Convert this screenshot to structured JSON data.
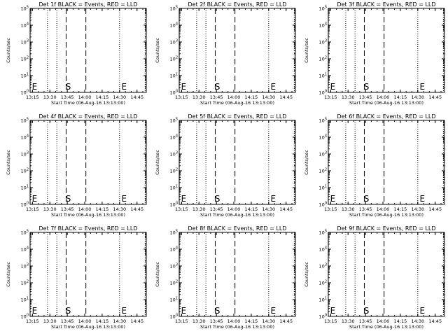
{
  "chart_data": [
    {
      "type": "line",
      "title": "Det 1f BLACK = Events, RED = LLD",
      "xlabel": "Start Time (06-Aug-16 13:13:00)",
      "ylabel": "Counts/sec",
      "xlim": [
        "13:13",
        "14:53"
      ],
      "x_ticks": [
        "13:15",
        "13:30",
        "13:45",
        "14:00",
        "14:15",
        "14:30",
        "14:45"
      ],
      "y_scale": "log",
      "ylim": [
        1,
        100000
      ],
      "y_ticks": [
        "10^0",
        "10^1",
        "10^2",
        "10^3",
        "10^4",
        "10^5"
      ],
      "dotted_vlines": [
        "13:28",
        "13:36",
        "14:30",
        "14:52"
      ],
      "dashed_vlines": [
        "13:44",
        "14:01"
      ],
      "markers": [
        {
          "text": "E",
          "x": "13:14"
        },
        {
          "text": "S",
          "x": "13:43"
        },
        {
          "text": "E",
          "x": "14:31"
        }
      ],
      "series": []
    },
    {
      "type": "line",
      "title": "Det 2f BLACK = Events, RED = LLD",
      "xlabel": "Start Time (06-Aug-16 13:13:00)",
      "ylabel": "Counts/sec",
      "xlim": [
        "13:13",
        "14:53"
      ],
      "x_ticks": [
        "13:15",
        "13:30",
        "13:45",
        "14:00",
        "14:15",
        "14:30",
        "14:45"
      ],
      "y_scale": "log",
      "ylim": [
        1,
        100000
      ],
      "y_ticks": [
        "10^0",
        "10^1",
        "10^2",
        "10^3",
        "10^4",
        "10^5"
      ],
      "dotted_vlines": [
        "13:28",
        "13:36",
        "14:30",
        "14:52"
      ],
      "dashed_vlines": [
        "13:44",
        "14:01"
      ],
      "markers": [
        {
          "text": "E",
          "x": "13:14"
        },
        {
          "text": "S",
          "x": "13:43"
        },
        {
          "text": "E",
          "x": "14:31"
        }
      ],
      "series": []
    },
    {
      "type": "line",
      "title": "Det 3f BLACK = Events, RED = LLD",
      "xlabel": "Start Time (06-Aug-16 13:13:00)",
      "ylabel": "Counts/sec",
      "xlim": [
        "13:13",
        "14:53"
      ],
      "x_ticks": [
        "13:15",
        "13:30",
        "13:45",
        "14:00",
        "14:15",
        "14:30",
        "14:45"
      ],
      "y_scale": "log",
      "ylim": [
        1,
        100000
      ],
      "y_ticks": [
        "10^0",
        "10^1",
        "10^2",
        "10^3",
        "10^4",
        "10^5"
      ],
      "dotted_vlines": [
        "13:28",
        "13:36",
        "14:30",
        "14:52"
      ],
      "dashed_vlines": [
        "13:44",
        "14:01"
      ],
      "markers": [
        {
          "text": "E",
          "x": "13:14"
        },
        {
          "text": "S",
          "x": "13:43"
        },
        {
          "text": "E",
          "x": "14:31"
        }
      ],
      "series": []
    },
    {
      "type": "line",
      "title": "Det 4f BLACK = Events, RED = LLD",
      "xlabel": "Start Time (06-Aug-16 13:13:00)",
      "ylabel": "Counts/sec",
      "xlim": [
        "13:13",
        "14:53"
      ],
      "x_ticks": [
        "13:15",
        "13:30",
        "13:45",
        "14:00",
        "14:15",
        "14:30",
        "14:45"
      ],
      "y_scale": "log",
      "ylim": [
        1,
        100000
      ],
      "y_ticks": [
        "10^0",
        "10^1",
        "10^2",
        "10^3",
        "10^4",
        "10^5"
      ],
      "dotted_vlines": [
        "13:28",
        "13:36",
        "14:30",
        "14:52"
      ],
      "dashed_vlines": [
        "13:44",
        "14:01"
      ],
      "markers": [
        {
          "text": "E",
          "x": "13:14"
        },
        {
          "text": "S",
          "x": "13:43"
        },
        {
          "text": "E",
          "x": "14:31"
        }
      ],
      "series": []
    },
    {
      "type": "line",
      "title": "Det 5f BLACK = Events, RED = LLD",
      "xlabel": "Start Time (06-Aug-16 13:13:00)",
      "ylabel": "Counts/sec",
      "xlim": [
        "13:13",
        "14:53"
      ],
      "x_ticks": [
        "13:15",
        "13:30",
        "13:45",
        "14:00",
        "14:15",
        "14:30",
        "14:45"
      ],
      "y_scale": "log",
      "ylim": [
        1,
        100000
      ],
      "y_ticks": [
        "10^0",
        "10^1",
        "10^2",
        "10^3",
        "10^4",
        "10^5"
      ],
      "dotted_vlines": [
        "13:28",
        "13:36",
        "14:30",
        "14:52"
      ],
      "dashed_vlines": [
        "13:44",
        "14:01"
      ],
      "markers": [
        {
          "text": "E",
          "x": "13:14"
        },
        {
          "text": "S",
          "x": "13:43"
        },
        {
          "text": "E",
          "x": "14:31"
        }
      ],
      "series": []
    },
    {
      "type": "line",
      "title": "Det 6f BLACK = Events, RED = LLD",
      "xlabel": "Start Time (06-Aug-16 13:13:00)",
      "ylabel": "Counts/sec",
      "xlim": [
        "13:13",
        "14:53"
      ],
      "x_ticks": [
        "13:15",
        "13:30",
        "13:45",
        "14:00",
        "14:15",
        "14:30",
        "14:45"
      ],
      "y_scale": "log",
      "ylim": [
        1,
        100000
      ],
      "y_ticks": [
        "10^0",
        "10^1",
        "10^2",
        "10^3",
        "10^4",
        "10^5"
      ],
      "dotted_vlines": [
        "13:28",
        "13:36",
        "14:30",
        "14:52"
      ],
      "dashed_vlines": [
        "13:44",
        "14:01"
      ],
      "markers": [
        {
          "text": "E",
          "x": "13:14"
        },
        {
          "text": "S",
          "x": "13:43"
        },
        {
          "text": "E",
          "x": "14:31"
        }
      ],
      "series": []
    },
    {
      "type": "line",
      "title": "Det 7f BLACK = Events, RED = LLD",
      "xlabel": "Start Time (06-Aug-16 13:13:00)",
      "ylabel": "Counts/sec",
      "xlim": [
        "13:13",
        "14:53"
      ],
      "x_ticks": [
        "13:15",
        "13:30",
        "13:45",
        "14:00",
        "14:15",
        "14:30",
        "14:45"
      ],
      "y_scale": "log",
      "ylim": [
        1,
        100000
      ],
      "y_ticks": [
        "10^0",
        "10^1",
        "10^2",
        "10^3",
        "10^4",
        "10^5"
      ],
      "dotted_vlines": [
        "13:28",
        "13:36",
        "14:30",
        "14:52"
      ],
      "dashed_vlines": [
        "13:44",
        "14:01"
      ],
      "markers": [
        {
          "text": "E",
          "x": "13:14"
        },
        {
          "text": "S",
          "x": "13:43"
        },
        {
          "text": "E",
          "x": "14:31"
        }
      ],
      "series": []
    },
    {
      "type": "line",
      "title": "Det 8f BLACK = Events, RED = LLD",
      "xlabel": "Start Time (06-Aug-16 13:13:00)",
      "ylabel": "Counts/sec",
      "xlim": [
        "13:13",
        "14:53"
      ],
      "x_ticks": [
        "13:15",
        "13:30",
        "13:45",
        "14:00",
        "14:15",
        "14:30",
        "14:45"
      ],
      "y_scale": "log",
      "ylim": [
        1,
        100000
      ],
      "y_ticks": [
        "10^0",
        "10^1",
        "10^2",
        "10^3",
        "10^4",
        "10^5"
      ],
      "dotted_vlines": [
        "13:28",
        "13:36",
        "14:30",
        "14:52"
      ],
      "dashed_vlines": [
        "13:44",
        "14:01"
      ],
      "markers": [
        {
          "text": "E",
          "x": "13:14"
        },
        {
          "text": "S",
          "x": "13:43"
        },
        {
          "text": "E",
          "x": "14:31"
        }
      ],
      "series": []
    },
    {
      "type": "line",
      "title": "Det 9f BLACK = Events, RED = LLD",
      "xlabel": "Start Time (06-Aug-16 13:13:00)",
      "ylabel": "Counts/sec",
      "xlim": [
        "13:13",
        "14:53"
      ],
      "x_ticks": [
        "13:15",
        "13:30",
        "13:45",
        "14:00",
        "14:15",
        "14:30",
        "14:45"
      ],
      "y_scale": "log",
      "ylim": [
        1,
        100000
      ],
      "y_ticks": [
        "10^0",
        "10^1",
        "10^2",
        "10^3",
        "10^4",
        "10^5"
      ],
      "dotted_vlines": [
        "13:28",
        "13:36",
        "14:30",
        "14:52"
      ],
      "dashed_vlines": [
        "13:44",
        "14:01"
      ],
      "markers": [
        {
          "text": "E",
          "x": "13:14"
        },
        {
          "text": "S",
          "x": "13:43"
        },
        {
          "text": "E",
          "x": "14:31"
        }
      ],
      "series": []
    }
  ],
  "colors": {
    "background": "#ffffff",
    "foreground": "#000000",
    "lld_series": "#ff0000"
  }
}
